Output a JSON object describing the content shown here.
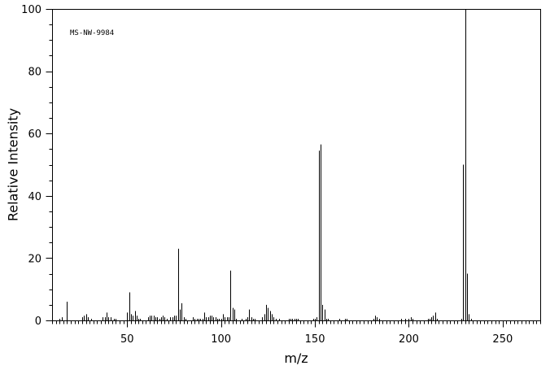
{
  "chart_data": {
    "type": "bar",
    "title": "",
    "annotation": "MS-NW-9984",
    "xlabel": "m/z",
    "ylabel": "Relative Intensity",
    "xlim": [
      10,
      270
    ],
    "ylim": [
      0,
      100
    ],
    "x_major_ticks": [
      50,
      100,
      150,
      200,
      250
    ],
    "x_minor_step": 2,
    "y_major_ticks": [
      0,
      20,
      40,
      60,
      80,
      100
    ],
    "y_minor_step": 5,
    "grid": false,
    "legend": "none",
    "series": [
      {
        "x": [
          14,
          15,
          18,
          26,
          27,
          28,
          29,
          31,
          37,
          38,
          39,
          40,
          41,
          43,
          44,
          50,
          51,
          52,
          53,
          54,
          55,
          56,
          57,
          61,
          62,
          63,
          64,
          65,
          66,
          67,
          68,
          69,
          70,
          71,
          73,
          74,
          75,
          76,
          77,
          78,
          79,
          80,
          81,
          85,
          86,
          87,
          88,
          89,
          90,
          91,
          92,
          93,
          94,
          95,
          96,
          97,
          98,
          99,
          100,
          101,
          102,
          103,
          104,
          105,
          106,
          107,
          108,
          111,
          113,
          114,
          115,
          116,
          117,
          118,
          122,
          123,
          124,
          125,
          126,
          127,
          128,
          129,
          131,
          136,
          137,
          138,
          139,
          140,
          141,
          149,
          150,
          151,
          152,
          153,
          154,
          155,
          156,
          157,
          163,
          166,
          167,
          181,
          182,
          183,
          184,
          196,
          198,
          200,
          201,
          202,
          210,
          211,
          212,
          213,
          214,
          215,
          228,
          229,
          230,
          231,
          232,
          233
        ],
        "y": [
          0.5,
          1.0,
          6.0,
          1.0,
          1.5,
          2.0,
          1.0,
          0.5,
          1.0,
          1.0,
          2.5,
          1.0,
          1.0,
          0.5,
          0.5,
          2.5,
          9.0,
          2.0,
          1.5,
          3.0,
          1.5,
          0.5,
          0.5,
          1.0,
          1.5,
          1.5,
          1.5,
          1.0,
          1.0,
          0.5,
          1.0,
          1.5,
          1.0,
          0.5,
          1.0,
          1.0,
          1.5,
          1.5,
          23.0,
          3.5,
          5.5,
          1.0,
          0.5,
          1.0,
          0.5,
          0.5,
          0.5,
          0.5,
          0.5,
          2.5,
          1.0,
          1.0,
          1.5,
          1.5,
          1.0,
          1.0,
          0.5,
          0.5,
          0.5,
          2.0,
          1.0,
          1.0,
          1.0,
          16.0,
          4.0,
          3.5,
          0.5,
          0.5,
          0.5,
          1.0,
          3.5,
          1.0,
          0.5,
          0.5,
          1.0,
          2.0,
          5.0,
          4.0,
          3.0,
          2.0,
          1.0,
          0.5,
          0.5,
          0.5,
          0.5,
          0.5,
          0.5,
          0.5,
          0.5,
          0.5,
          0.5,
          1.0,
          54.5,
          56.5,
          5.0,
          3.5,
          0.5,
          0.5,
          0.5,
          0.5,
          0.5,
          0.5,
          1.5,
          1.0,
          0.5,
          0.5,
          0.5,
          0.5,
          1.0,
          0.5,
          0.5,
          0.5,
          1.0,
          1.5,
          2.5,
          0.5,
          0.5,
          50.0,
          100.0,
          15.0,
          2.0,
          0.5
        ]
      }
    ]
  }
}
